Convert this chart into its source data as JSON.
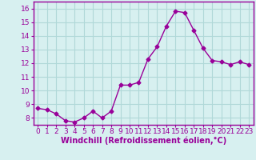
{
  "x": [
    0,
    1,
    2,
    3,
    4,
    5,
    6,
    7,
    8,
    9,
    10,
    11,
    12,
    13,
    14,
    15,
    16,
    17,
    18,
    19,
    20,
    21,
    22,
    23
  ],
  "y": [
    8.7,
    8.6,
    8.3,
    7.8,
    7.7,
    8.0,
    8.5,
    8.0,
    8.5,
    10.4,
    10.4,
    10.6,
    12.3,
    13.2,
    14.7,
    15.8,
    15.7,
    14.4,
    13.1,
    12.2,
    12.1,
    11.9,
    12.1,
    11.9
  ],
  "line_color": "#990099",
  "marker": "D",
  "marker_size": 2.5,
  "bg_color": "#d7f0f0",
  "grid_color": "#b0d8d8",
  "xlabel": "Windchill (Refroidissement éolien,°C)",
  "xlim": [
    -0.5,
    23.5
  ],
  "ylim": [
    7.5,
    16.5
  ],
  "yticks": [
    8,
    9,
    10,
    11,
    12,
    13,
    14,
    15,
    16
  ],
  "xticks": [
    0,
    1,
    2,
    3,
    4,
    5,
    6,
    7,
    8,
    9,
    10,
    11,
    12,
    13,
    14,
    15,
    16,
    17,
    18,
    19,
    20,
    21,
    22,
    23
  ],
  "tick_label_size": 6.5,
  "xlabel_size": 7
}
